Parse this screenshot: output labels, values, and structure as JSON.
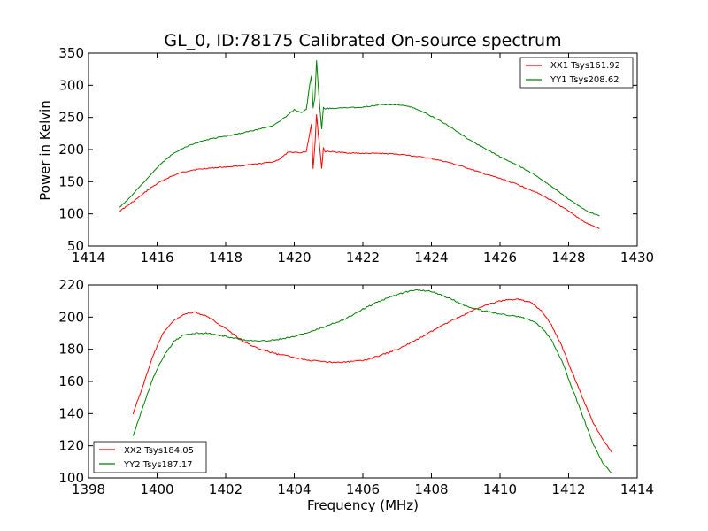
{
  "figure": {
    "title": "GL_0, ID:78175 Calibrated On-source spectrum",
    "ylabel": "Power in Kelvin",
    "xlabel": "Frequency (MHz)"
  },
  "colors": {
    "xx": "#ff0000",
    "yy": "#008000"
  },
  "chart_data": [
    {
      "type": "line",
      "title": "GL_0, ID:78175 Calibrated On-source spectrum",
      "xlabel": "",
      "ylabel": "Power in Kelvin",
      "xlim": [
        1414,
        1430
      ],
      "ylim": [
        50,
        350
      ],
      "xticks": [
        1414,
        1416,
        1418,
        1420,
        1422,
        1424,
        1426,
        1428,
        1430
      ],
      "yticks": [
        50,
        100,
        150,
        200,
        250,
        300,
        350
      ],
      "grid": false,
      "legend": "top-right",
      "series": [
        {
          "name": "XX1 Tsys161.92",
          "color": "#ff0000",
          "x": [
            1414.9,
            1415.2,
            1415.5,
            1415.8,
            1416.1,
            1416.4,
            1416.7,
            1417.0,
            1417.5,
            1418.0,
            1418.5,
            1419.0,
            1419.4,
            1419.6,
            1419.8,
            1420.0,
            1420.2,
            1420.35,
            1420.45,
            1420.5,
            1420.55,
            1420.6,
            1420.65,
            1420.7,
            1420.75,
            1420.8,
            1420.85,
            1420.9,
            1420.95,
            1421.0,
            1421.5,
            1422.0,
            1422.5,
            1423.0,
            1423.5,
            1424.0,
            1424.5,
            1425.0,
            1425.5,
            1426.0,
            1426.5,
            1427.0,
            1427.5,
            1428.0,
            1428.5,
            1428.9
          ],
          "y": [
            104,
            115,
            127,
            140,
            150,
            158,
            164,
            168,
            171,
            173,
            175,
            178,
            181,
            186,
            195,
            196,
            195,
            197,
            225,
            240,
            170,
            205,
            255,
            225,
            200,
            170,
            203,
            196,
            198,
            197,
            195,
            194,
            194,
            193,
            190,
            186,
            180,
            172,
            163,
            155,
            146,
            135,
            121,
            104,
            86,
            77
          ]
        },
        {
          "name": "YY1 Tsys208.62",
          "color": "#008000",
          "x": [
            1414.9,
            1415.2,
            1415.5,
            1415.8,
            1416.1,
            1416.4,
            1416.7,
            1417.0,
            1417.5,
            1418.0,
            1418.5,
            1419.0,
            1419.4,
            1419.6,
            1419.8,
            1420.0,
            1420.2,
            1420.35,
            1420.45,
            1420.5,
            1420.55,
            1420.6,
            1420.65,
            1420.7,
            1420.75,
            1420.8,
            1420.85,
            1420.9,
            1420.95,
            1421.0,
            1421.5,
            1422.0,
            1422.5,
            1423.0,
            1423.5,
            1424.0,
            1424.5,
            1425.0,
            1425.5,
            1426.0,
            1426.5,
            1427.0,
            1427.5,
            1428.0,
            1428.5,
            1428.9
          ],
          "y": [
            110,
            125,
            143,
            160,
            177,
            191,
            201,
            208,
            216,
            221,
            226,
            232,
            238,
            245,
            253,
            262,
            258,
            262,
            300,
            314,
            265,
            280,
            339,
            298,
            263,
            232,
            266,
            263,
            265,
            264,
            265,
            266,
            270,
            270,
            265,
            252,
            237,
            219,
            203,
            189,
            176,
            161,
            143,
            123,
            105,
            97
          ]
        }
      ]
    },
    {
      "type": "line",
      "title": "",
      "xlabel": "Frequency (MHz)",
      "ylabel": "",
      "xlim": [
        1398,
        1414
      ],
      "ylim": [
        100,
        220
      ],
      "xticks": [
        1398,
        1400,
        1402,
        1404,
        1406,
        1408,
        1410,
        1412,
        1414
      ],
      "yticks": [
        100,
        120,
        140,
        160,
        180,
        200,
        220
      ],
      "grid": false,
      "legend": "bottom-left",
      "series": [
        {
          "name": "XX2 Tsys184.05",
          "color": "#ff0000",
          "x": [
            1399.3,
            1399.6,
            1399.9,
            1400.2,
            1400.5,
            1400.8,
            1401.1,
            1401.5,
            1402.0,
            1402.5,
            1403.0,
            1403.5,
            1404.0,
            1404.5,
            1405.0,
            1405.5,
            1406.0,
            1406.5,
            1407.0,
            1407.5,
            1408.0,
            1408.5,
            1409.0,
            1409.5,
            1410.0,
            1410.3,
            1410.6,
            1410.9,
            1411.2,
            1411.5,
            1411.8,
            1412.1,
            1412.4,
            1412.7,
            1413.0,
            1413.25
          ],
          "y": [
            140,
            158,
            177,
            191,
            198,
            202,
            203,
            200,
            193,
            185,
            180,
            177,
            175,
            173,
            172,
            172,
            173,
            176,
            180,
            185,
            191,
            197,
            202,
            207,
            210,
            211,
            211,
            209,
            204,
            195,
            182,
            166,
            150,
            135,
            124,
            116
          ]
        },
        {
          "name": "YY2 Tsys187.17",
          "color": "#008000",
          "x": [
            1399.3,
            1399.6,
            1399.9,
            1400.2,
            1400.5,
            1400.8,
            1401.1,
            1401.5,
            1402.0,
            1402.5,
            1403.0,
            1403.5,
            1404.0,
            1404.5,
            1405.0,
            1405.5,
            1406.0,
            1406.5,
            1407.0,
            1407.5,
            1408.0,
            1408.5,
            1409.0,
            1409.5,
            1410.0,
            1410.3,
            1410.6,
            1410.9,
            1411.2,
            1411.5,
            1411.8,
            1412.1,
            1412.4,
            1412.7,
            1413.0,
            1413.25
          ],
          "y": [
            126,
            145,
            163,
            176,
            185,
            189,
            190,
            190,
            188,
            186,
            185,
            186,
            188,
            191,
            195,
            199,
            205,
            210,
            214,
            217,
            216,
            212,
            207,
            204,
            202,
            201,
            200,
            198,
            194,
            186,
            173,
            156,
            139,
            122,
            109,
            103
          ]
        }
      ]
    }
  ]
}
